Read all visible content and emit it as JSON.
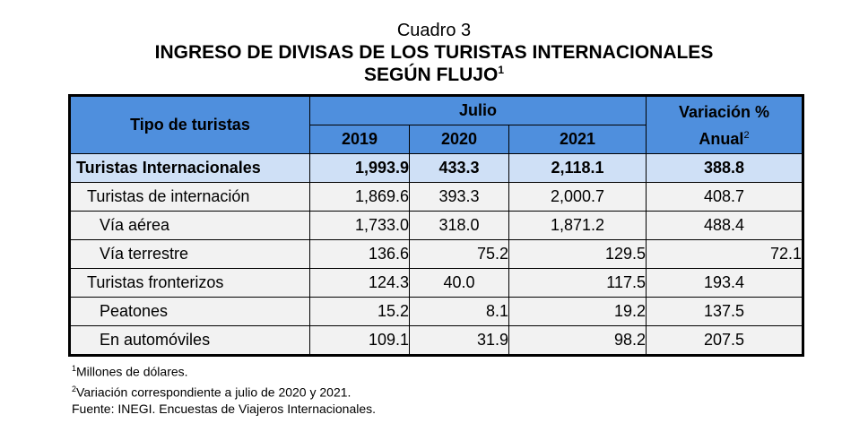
{
  "header": {
    "cuadro": "Cuadro 3",
    "title_line1": "INGRESO DE DIVISAS DE LOS TURISTAS INTERNACIONALES",
    "title_line2": "SEGÚN FLUJO",
    "title_sup": "1"
  },
  "table": {
    "col_tipo": "Tipo de turistas",
    "col_group": "Julio",
    "years": [
      "2019",
      "2020",
      "2021"
    ],
    "col_var_line1": "Variación %",
    "col_var_line2": "Anual",
    "col_var_sup": "2",
    "rows": [
      {
        "label": "Turistas Internacionales",
        "v2019": "1,993.9",
        "v2020": "433.3",
        "v2021": "2,118.1",
        "var": "388.8"
      },
      {
        "label": "Turistas de internación",
        "v2019": "1,869.6",
        "v2020": "393.3",
        "v2021": "2,000.7",
        "var": "408.7"
      },
      {
        "label": "Vía aérea",
        "v2019": "1,733.0",
        "v2020": "318.0",
        "v2021": "1,871.2",
        "var": "488.4"
      },
      {
        "label": "Vía terrestre",
        "v2019": "136.6",
        "v2020": "75.2",
        "v2021": "129.5",
        "var": "72.1"
      },
      {
        "label": "Turistas fronterizos",
        "v2019": "124.3",
        "v2020": "40.0",
        "v2021": "117.5",
        "var": "193.4"
      },
      {
        "label": "Peatones",
        "v2019": "15.2",
        "v2020": "8.1",
        "v2021": "19.2",
        "var": "137.5"
      },
      {
        "label": "En automóviles",
        "v2019": "109.1",
        "v2020": "31.9",
        "v2021": "98.2",
        "var": "207.5"
      }
    ]
  },
  "notes": {
    "n1_sup": "1",
    "n1": "Millones de dólares.",
    "n2_sup": "2",
    "n2": "Variación correspondiente a julio de 2020 y 2021.",
    "source": "Fuente: INEGI. Encuestas de Viajeros Internacionales."
  },
  "colors": {
    "header_bg": "#4f8fdd",
    "total_row_bg": "#cfe0f6",
    "row_bg": "#f2f2f2"
  }
}
